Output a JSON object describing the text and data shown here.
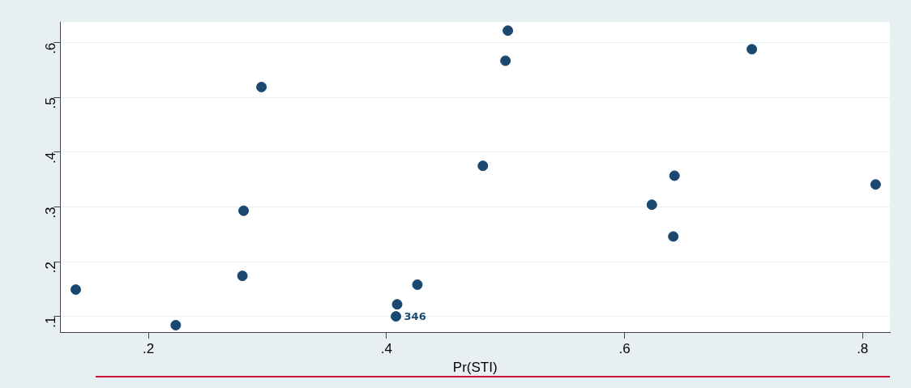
{
  "chart_data": {
    "type": "scatter",
    "xlabel": "Pr(STI)",
    "x": [
      0.139,
      0.223,
      0.279,
      0.28,
      0.295,
      0.408,
      0.409,
      0.426,
      0.481,
      0.5,
      0.502,
      0.623,
      0.641,
      0.642,
      0.707,
      0.811
    ],
    "series": [
      {
        "color": "#1a4870",
        "values": [
          0.149,
          0.084,
          0.174,
          0.293,
          0.519,
          0.1,
          0.122,
          0.158,
          0.375,
          0.567,
          0.622,
          0.304,
          0.246,
          0.357,
          0.588,
          0.341
        ]
      }
    ],
    "xlim": [
      0.126,
      0.823
    ],
    "ylim": [
      0.071,
      0.638
    ],
    "xticks": [
      {
        "value": 0.2,
        "label": ".2"
      },
      {
        "value": 0.4,
        "label": ".4"
      },
      {
        "value": 0.6,
        "label": ".6"
      },
      {
        "value": 0.8,
        "label": ".8"
      }
    ],
    "yticks": [
      {
        "value": 0.1,
        "label": ".1"
      },
      {
        "value": 0.2,
        "label": ".2"
      },
      {
        "value": 0.3,
        "label": ".3"
      },
      {
        "value": 0.4,
        "label": ".4"
      },
      {
        "value": 0.5,
        "label": ".5"
      },
      {
        "value": 0.6,
        "label": ".6"
      }
    ],
    "annotations": [
      {
        "text": "346",
        "x": 0.408,
        "y": 0.1
      }
    ],
    "grid": "y",
    "marker": "circle",
    "legend": false
  }
}
